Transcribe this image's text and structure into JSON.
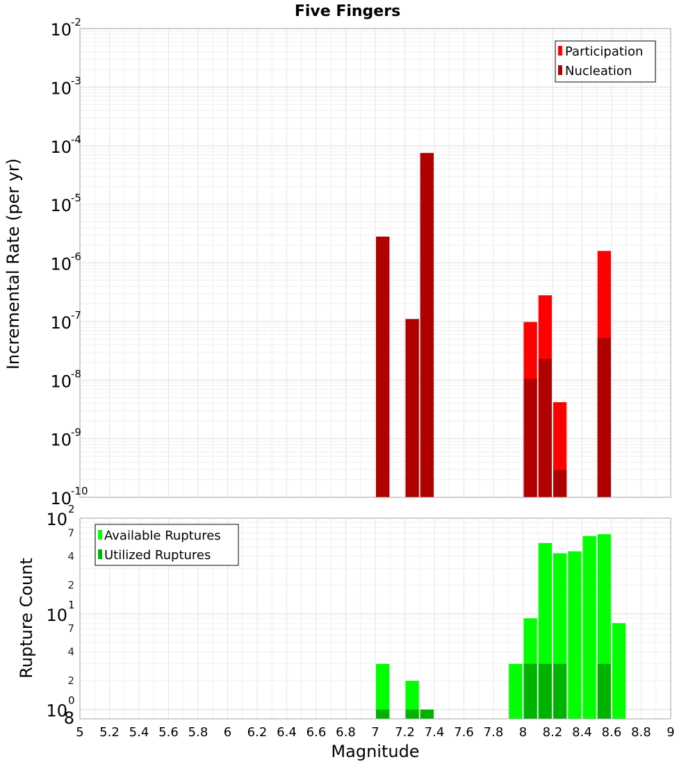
{
  "chart_data": [
    {
      "type": "bar",
      "title": "Five Fingers",
      "xlabel": "",
      "ylabel": "Incremental Rate (per yr)",
      "yscale": "log",
      "xlim": [
        5,
        9
      ],
      "ylim": [
        1e-10,
        0.01
      ],
      "grid": true,
      "legend_position": "top-right",
      "y_major_ticks": [
        {
          "base": "10",
          "exp": "-10"
        },
        {
          "base": "10",
          "exp": "-9"
        },
        {
          "base": "10",
          "exp": "-8"
        },
        {
          "base": "10",
          "exp": "-7"
        },
        {
          "base": "10",
          "exp": "-6"
        },
        {
          "base": "10",
          "exp": "-5"
        },
        {
          "base": "10",
          "exp": "-4"
        },
        {
          "base": "10",
          "exp": "-3"
        },
        {
          "base": "10",
          "exp": "-2"
        }
      ],
      "bar_width": 0.1,
      "series": [
        {
          "name": "Participation",
          "color": "#ff0000",
          "x": [
            7.05,
            7.25,
            7.35,
            8.05,
            8.15,
            8.25,
            8.55
          ],
          "values": [
            2.8e-06,
            1.1e-07,
            7.5e-05,
            9.8e-08,
            2.8e-07,
            4.2e-09,
            1.6e-06
          ]
        },
        {
          "name": "Nucleation",
          "color": "#b00000",
          "x": [
            7.05,
            7.25,
            7.35,
            8.05,
            8.15,
            8.25,
            8.55
          ],
          "values": [
            2.8e-06,
            1.1e-07,
            7.5e-05,
            1.05e-08,
            2.3e-08,
            2.9e-10,
            5.2e-08
          ]
        }
      ]
    },
    {
      "type": "bar",
      "xlabel": "Magnitude",
      "ylabel": "Rupture Count",
      "yscale": "log",
      "xlim": [
        5,
        9
      ],
      "ylim": [
        0.8,
        100
      ],
      "grid": true,
      "legend_position": "top-left",
      "x_ticks": [
        "5",
        "5.2",
        "5.4",
        "5.6",
        "5.8",
        "6",
        "6.2",
        "6.4",
        "6.6",
        "6.8",
        "7",
        "7.2",
        "7.4",
        "7.6",
        "7.8",
        "8",
        "8.2",
        "8.4",
        "8.6",
        "8.8",
        "9"
      ],
      "y_major_ticks": [
        {
          "base": "10",
          "exp": "0"
        },
        {
          "base": "10",
          "exp": "1"
        },
        {
          "base": "10",
          "exp": "2"
        }
      ],
      "y_minor_ticks": [
        {
          "label": "8",
          "value": 0.8
        },
        {
          "label": "2",
          "value": 2
        },
        {
          "label": "4",
          "value": 4
        },
        {
          "label": "7",
          "value": 7
        },
        {
          "label": "2",
          "value": 20
        },
        {
          "label": "4",
          "value": 40
        },
        {
          "label": "7",
          "value": 70
        }
      ],
      "bar_width": 0.1,
      "series": [
        {
          "name": "Available Ruptures",
          "color": "#00ff00",
          "x": [
            7.05,
            7.25,
            7.35,
            7.95,
            8.05,
            8.15,
            8.25,
            8.35,
            8.45,
            8.55,
            8.65
          ],
          "values": [
            3,
            2,
            1,
            3,
            9,
            55,
            43,
            45,
            65,
            68,
            8
          ]
        },
        {
          "name": "Utilized Ruptures",
          "color": "#00b300",
          "x": [
            7.05,
            7.25,
            7.35,
            8.05,
            8.15,
            8.25,
            8.55
          ],
          "values": [
            1,
            1,
            1,
            3,
            3,
            3,
            3
          ]
        }
      ]
    }
  ]
}
